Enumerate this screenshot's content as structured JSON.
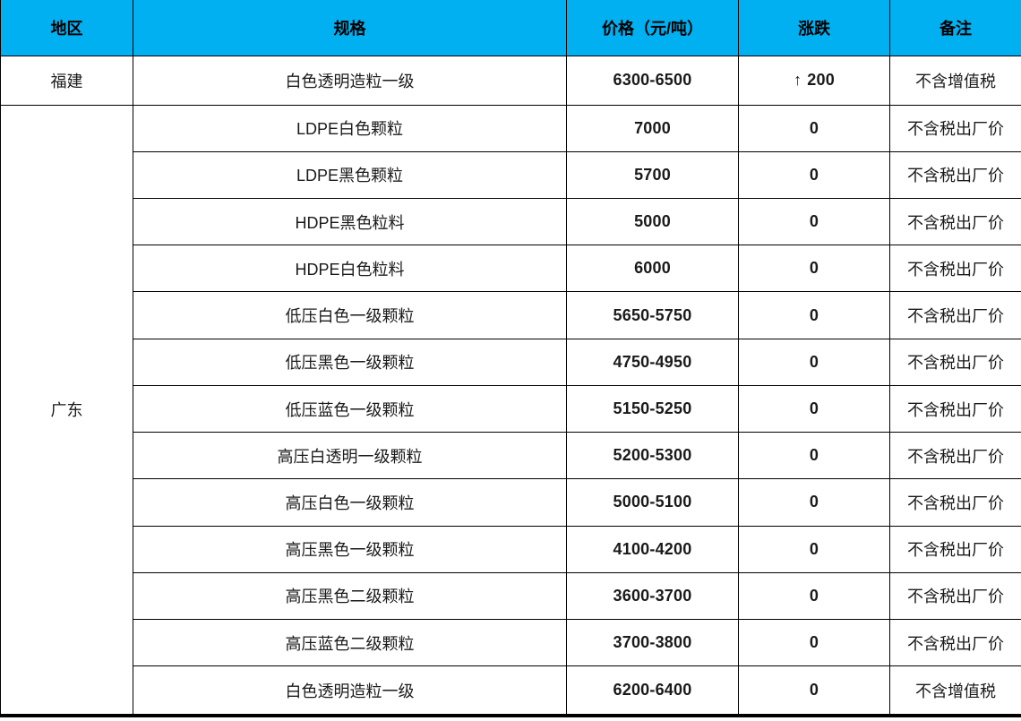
{
  "table": {
    "header_bg": "#00b0f0",
    "up_color": "#ff0000",
    "columns": {
      "region": "地区",
      "spec": "规格",
      "price": "价格（元/吨）",
      "change": "涨跌",
      "note": "备注"
    },
    "regions": {
      "fujian": "福建",
      "guangdong": "广东"
    },
    "rows": [
      {
        "region": "福建",
        "spec": "白色透明造粒一级",
        "price": "6300-6500",
        "arrow": "↑",
        "change": "200",
        "change_dir": "up",
        "note": "不含增值税"
      },
      {
        "spec": "LDPE白色颗粒",
        "price": "7000",
        "change": "0",
        "note": "不含税出厂价"
      },
      {
        "spec": "LDPE黑色颗粒",
        "price": "5700",
        "change": "0",
        "note": "不含税出厂价"
      },
      {
        "spec": "HDPE黑色粒料",
        "price": "5000",
        "change": "0",
        "note": "不含税出厂价"
      },
      {
        "spec": "HDPE白色粒料",
        "price": "6000",
        "change": "0",
        "note": "不含税出厂价"
      },
      {
        "spec": "低压白色一级颗粒",
        "price": "5650-5750",
        "change": "0",
        "note": "不含税出厂价"
      },
      {
        "spec": "低压黑色一级颗粒",
        "price": "4750-4950",
        "change": "0",
        "note": "不含税出厂价"
      },
      {
        "spec": "低压蓝色一级颗粒",
        "price": "5150-5250",
        "change": "0",
        "note": "不含税出厂价"
      },
      {
        "spec": "高压白透明一级颗粒",
        "price": "5200-5300",
        "change": "0",
        "note": "不含税出厂价"
      },
      {
        "spec": "高压白色一级颗粒",
        "price": "5000-5100",
        "change": "0",
        "note": "不含税出厂价"
      },
      {
        "spec": "高压黑色一级颗粒",
        "price": "4100-4200",
        "change": "0",
        "note": "不含税出厂价"
      },
      {
        "spec": "高压黑色二级颗粒",
        "price": "3600-3700",
        "change": "0",
        "note": "不含税出厂价"
      },
      {
        "spec": "高压蓝色二级颗粒",
        "price": "3700-3800",
        "change": "0",
        "note": "不含税出厂价"
      },
      {
        "spec": "白色透明造粒一级",
        "price": "6200-6400",
        "change": "0",
        "note": "不含增值税"
      }
    ]
  }
}
